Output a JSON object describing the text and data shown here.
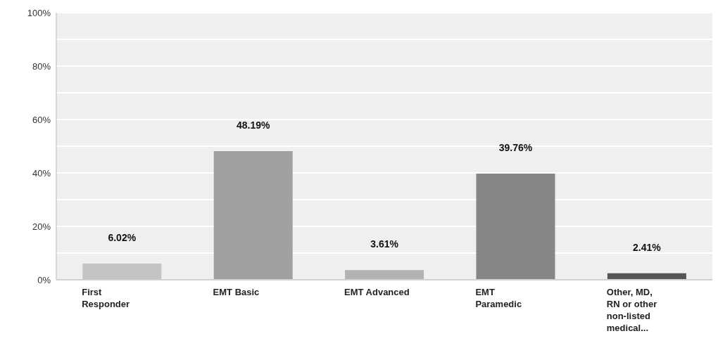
{
  "chart_data": {
    "type": "bar",
    "categories": [
      "First Responder",
      "EMT Basic",
      "EMT Advanced",
      "EMT Paramedic",
      "Other, MD, RN or other non-listed medical..."
    ],
    "values": [
      6.02,
      48.19,
      3.61,
      39.76,
      2.41
    ],
    "colors": [
      "#c4c4c4",
      "#a0a0a0",
      "#b2b2b2",
      "#868686",
      "#555555"
    ],
    "value_labels": [
      "6.02%",
      "48.19%",
      "3.61%",
      "39.76%",
      "2.41%"
    ],
    "ylim": [
      0,
      100
    ],
    "yticks": [
      {
        "value": 0,
        "label": "0%"
      },
      {
        "value": 10,
        "label": null
      },
      {
        "value": 20,
        "label": "20%"
      },
      {
        "value": 30,
        "label": null
      },
      {
        "value": 40,
        "label": "40%"
      },
      {
        "value": 50,
        "label": null
      },
      {
        "value": 60,
        "label": "60%"
      },
      {
        "value": 70,
        "label": null
      },
      {
        "value": 80,
        "label": "80%"
      },
      {
        "value": 90,
        "label": null
      },
      {
        "value": 100,
        "label": "100%"
      }
    ],
    "grid": "y",
    "legend": false
  }
}
